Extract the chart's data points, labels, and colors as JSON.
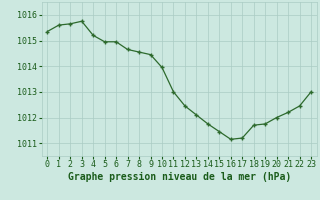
{
  "x": [
    0,
    1,
    2,
    3,
    4,
    5,
    6,
    7,
    8,
    9,
    10,
    11,
    12,
    13,
    14,
    15,
    16,
    17,
    18,
    19,
    20,
    21,
    22,
    23
  ],
  "y": [
    1015.35,
    1015.6,
    1015.65,
    1015.75,
    1015.2,
    1014.95,
    1014.95,
    1014.65,
    1014.55,
    1014.45,
    1013.95,
    1013.0,
    1012.45,
    1012.1,
    1011.75,
    1011.45,
    1011.15,
    1011.2,
    1011.7,
    1011.75,
    1012.0,
    1012.2,
    1012.45,
    1013.0
  ],
  "line_color": "#2d6a2d",
  "marker_color": "#2d6a2d",
  "bg_color": "#cce8e0",
  "grid_color": "#aaccc4",
  "xlabel": "Graphe pression niveau de la mer (hPa)",
  "xlabel_color": "#1a5c1a",
  "xlabel_fontsize": 7,
  "tick_color": "#1a5c1a",
  "tick_fontsize": 6,
  "ylim": [
    1010.5,
    1016.5
  ],
  "xlim": [
    -0.5,
    23.5
  ],
  "yticks": [
    1011,
    1012,
    1013,
    1014,
    1015,
    1016
  ],
  "xtick_labels": [
    "0",
    "1",
    "2",
    "3",
    "4",
    "5",
    "6",
    "7",
    "8",
    "9",
    "10",
    "11",
    "12",
    "13",
    "14",
    "15",
    "16",
    "17",
    "18",
    "19",
    "20",
    "21",
    "22",
    "23"
  ]
}
